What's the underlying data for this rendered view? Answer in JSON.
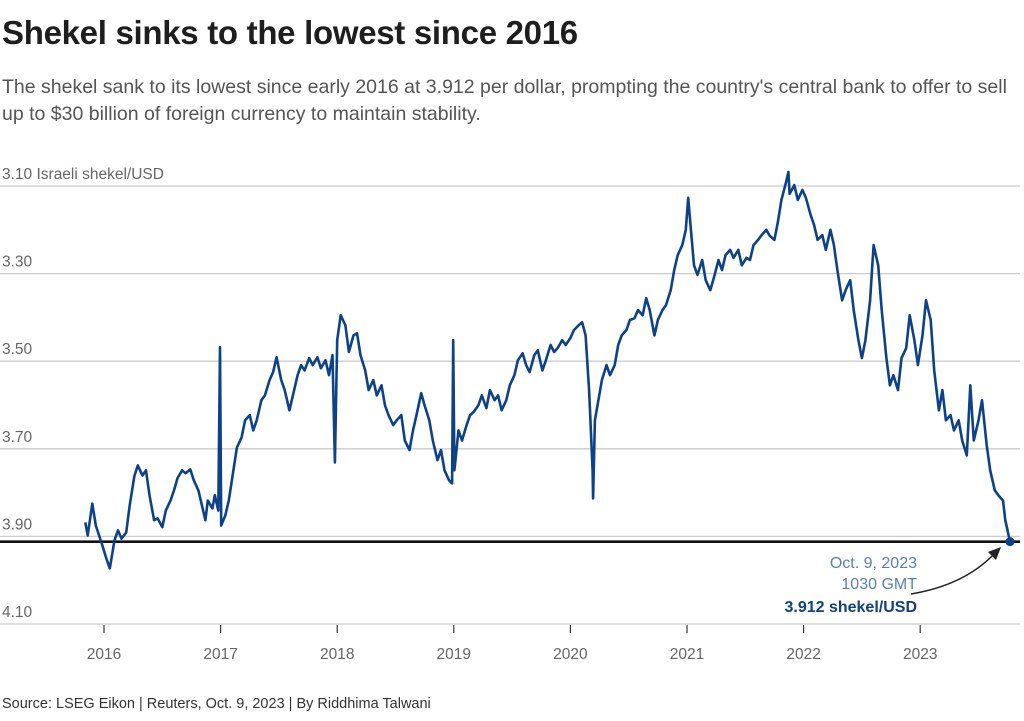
{
  "header": {
    "title": "Shekel sinks to the lowest since 2016",
    "subtitle": "The shekel sank to its lowest since early 2016 at 3.912 per dollar, prompting the country's central bank to offer to sell up to $30 billion of foreign currency to maintain stability."
  },
  "footer": {
    "source": "Source: LSEG Eikon | Reuters, Oct. 9, 2023 | By Riddhima Talwani"
  },
  "colors": {
    "line": "#0d4188",
    "gridline": "#cccccc",
    "reference_line": "#111111",
    "annotation_date": "#5b7fb3",
    "annotation_value": "#123f80"
  },
  "chart_data": {
    "type": "line",
    "title": "Shekel sinks to the lowest since 2016",
    "xlabel": "",
    "ylabel": "Israeli shekel/USD",
    "y_unit_label": "Israeli shekel/USD",
    "y_inverted": true,
    "ylim": [
      3.1,
      4.1
    ],
    "xlim": [
      2015.75,
      2023.85
    ],
    "y_ticks": [
      3.1,
      3.3,
      3.5,
      3.7,
      3.9,
      4.1
    ],
    "y_tick_labels": [
      "3.10",
      "3.30",
      "3.50",
      "3.70",
      "3.90",
      "4.10"
    ],
    "x_ticks": [
      2016,
      2017,
      2018,
      2019,
      2020,
      2021,
      2022,
      2023
    ],
    "x_tick_labels": [
      "2016",
      "2017",
      "2018",
      "2019",
      "2020",
      "2021",
      "2022",
      "2023"
    ],
    "grid": "horizontal",
    "reference_line": {
      "value": 3.912
    },
    "annotation": {
      "date_line1": "Oct. 9, 2023",
      "date_line2": "1030 GMT",
      "value_text": "3.912 shekel/USD",
      "x": 2023.77,
      "y": 3.912
    },
    "series": [
      {
        "name": "Israeli shekel/USD",
        "points": [
          [
            2015.84,
            3.868
          ],
          [
            2015.86,
            3.898
          ],
          [
            2015.9,
            3.825
          ],
          [
            2015.93,
            3.875
          ],
          [
            2015.98,
            3.916
          ],
          [
            2016.02,
            3.95
          ],
          [
            2016.05,
            3.973
          ],
          [
            2016.09,
            3.909
          ],
          [
            2016.12,
            3.886
          ],
          [
            2016.15,
            3.905
          ],
          [
            2016.19,
            3.891
          ],
          [
            2016.22,
            3.829
          ],
          [
            2016.26,
            3.763
          ],
          [
            2016.29,
            3.738
          ],
          [
            2016.33,
            3.761
          ],
          [
            2016.36,
            3.749
          ],
          [
            2016.39,
            3.806
          ],
          [
            2016.43,
            3.863
          ],
          [
            2016.46,
            3.859
          ],
          [
            2016.5,
            3.879
          ],
          [
            2016.53,
            3.841
          ],
          [
            2016.57,
            3.818
          ],
          [
            2016.6,
            3.795
          ],
          [
            2016.63,
            3.767
          ],
          [
            2016.67,
            3.749
          ],
          [
            2016.7,
            3.756
          ],
          [
            2016.74,
            3.747
          ],
          [
            2016.77,
            3.772
          ],
          [
            2016.81,
            3.795
          ],
          [
            2016.84,
            3.829
          ],
          [
            2016.87,
            3.863
          ],
          [
            2016.89,
            3.818
          ],
          [
            2016.93,
            3.836
          ],
          [
            2016.95,
            3.806
          ],
          [
            2016.98,
            3.841
          ],
          [
            2016.995,
            3.468
          ],
          [
            2017.005,
            3.875
          ],
          [
            2017.04,
            3.852
          ],
          [
            2017.07,
            3.818
          ],
          [
            2017.11,
            3.749
          ],
          [
            2017.14,
            3.697
          ],
          [
            2017.18,
            3.674
          ],
          [
            2017.21,
            3.635
          ],
          [
            2017.25,
            3.623
          ],
          [
            2017.28,
            3.658
          ],
          [
            2017.31,
            3.635
          ],
          [
            2017.35,
            3.589
          ],
          [
            2017.38,
            3.578
          ],
          [
            2017.42,
            3.543
          ],
          [
            2017.45,
            3.525
          ],
          [
            2017.48,
            3.491
          ],
          [
            2017.52,
            3.543
          ],
          [
            2017.55,
            3.566
          ],
          [
            2017.59,
            3.612
          ],
          [
            2017.62,
            3.578
          ],
          [
            2017.66,
            3.532
          ],
          [
            2017.69,
            3.509
          ],
          [
            2017.72,
            3.521
          ],
          [
            2017.76,
            3.493
          ],
          [
            2017.79,
            3.509
          ],
          [
            2017.83,
            3.491
          ],
          [
            2017.86,
            3.516
          ],
          [
            2017.9,
            3.498
          ],
          [
            2017.93,
            3.532
          ],
          [
            2017.96,
            3.486
          ],
          [
            2017.98,
            3.731
          ],
          [
            2018.0,
            3.452
          ],
          [
            2018.03,
            3.395
          ],
          [
            2018.07,
            3.418
          ],
          [
            2018.1,
            3.479
          ],
          [
            2018.14,
            3.441
          ],
          [
            2018.17,
            3.436
          ],
          [
            2018.2,
            3.486
          ],
          [
            2018.24,
            3.521
          ],
          [
            2018.27,
            3.566
          ],
          [
            2018.31,
            3.543
          ],
          [
            2018.34,
            3.578
          ],
          [
            2018.38,
            3.555
          ],
          [
            2018.41,
            3.601
          ],
          [
            2018.44,
            3.623
          ],
          [
            2018.48,
            3.646
          ],
          [
            2018.51,
            3.635
          ],
          [
            2018.55,
            3.623
          ],
          [
            2018.58,
            3.681
          ],
          [
            2018.62,
            3.703
          ],
          [
            2018.65,
            3.658
          ],
          [
            2018.68,
            3.623
          ],
          [
            2018.72,
            3.573
          ],
          [
            2018.75,
            3.601
          ],
          [
            2018.79,
            3.635
          ],
          [
            2018.82,
            3.681
          ],
          [
            2018.86,
            3.726
          ],
          [
            2018.89,
            3.703
          ],
          [
            2018.92,
            3.749
          ],
          [
            2018.96,
            3.772
          ],
          [
            2018.985,
            3.779
          ],
          [
            2018.995,
            3.452
          ],
          [
            2019.005,
            3.749
          ],
          [
            2019.04,
            3.658
          ],
          [
            2019.07,
            3.681
          ],
          [
            2019.11,
            3.646
          ],
          [
            2019.14,
            3.623
          ],
          [
            2019.17,
            3.616
          ],
          [
            2019.21,
            3.601
          ],
          [
            2019.24,
            3.578
          ],
          [
            2019.28,
            3.607
          ],
          [
            2019.31,
            3.566
          ],
          [
            2019.35,
            3.589
          ],
          [
            2019.38,
            3.578
          ],
          [
            2019.41,
            3.612
          ],
          [
            2019.45,
            3.589
          ],
          [
            2019.48,
            3.555
          ],
          [
            2019.52,
            3.532
          ],
          [
            2019.55,
            3.498
          ],
          [
            2019.59,
            3.482
          ],
          [
            2019.62,
            3.509
          ],
          [
            2019.65,
            3.525
          ],
          [
            2019.69,
            3.486
          ],
          [
            2019.72,
            3.475
          ],
          [
            2019.76,
            3.521
          ],
          [
            2019.79,
            3.498
          ],
          [
            2019.83,
            3.463
          ],
          [
            2019.86,
            3.479
          ],
          [
            2019.89,
            3.47
          ],
          [
            2019.93,
            3.452
          ],
          [
            2019.96,
            3.463
          ],
          [
            2020.0,
            3.447
          ],
          [
            2020.03,
            3.429
          ],
          [
            2020.07,
            3.418
          ],
          [
            2020.1,
            3.411
          ],
          [
            2020.13,
            3.441
          ],
          [
            2020.16,
            3.566
          ],
          [
            2020.19,
            3.749
          ],
          [
            2020.195,
            3.813
          ],
          [
            2020.21,
            3.635
          ],
          [
            2020.24,
            3.589
          ],
          [
            2020.27,
            3.543
          ],
          [
            2020.31,
            3.509
          ],
          [
            2020.34,
            3.532
          ],
          [
            2020.38,
            3.509
          ],
          [
            2020.41,
            3.463
          ],
          [
            2020.44,
            3.441
          ],
          [
            2020.48,
            3.429
          ],
          [
            2020.51,
            3.406
          ],
          [
            2020.55,
            3.402
          ],
          [
            2020.58,
            3.383
          ],
          [
            2020.62,
            3.395
          ],
          [
            2020.65,
            3.356
          ],
          [
            2020.68,
            3.383
          ],
          [
            2020.72,
            3.441
          ],
          [
            2020.75,
            3.406
          ],
          [
            2020.79,
            3.383
          ],
          [
            2020.82,
            3.372
          ],
          [
            2020.86,
            3.338
          ],
          [
            2020.89,
            3.292
          ],
          [
            2020.92,
            3.258
          ],
          [
            2020.96,
            3.235
          ],
          [
            2020.99,
            3.2
          ],
          [
            2021.01,
            3.127
          ],
          [
            2021.03,
            3.189
          ],
          [
            2021.06,
            3.281
          ],
          [
            2021.09,
            3.303
          ],
          [
            2021.13,
            3.269
          ],
          [
            2021.16,
            3.315
          ],
          [
            2021.2,
            3.338
          ],
          [
            2021.23,
            3.31
          ],
          [
            2021.27,
            3.269
          ],
          [
            2021.3,
            3.292
          ],
          [
            2021.33,
            3.258
          ],
          [
            2021.37,
            3.246
          ],
          [
            2021.4,
            3.264
          ],
          [
            2021.44,
            3.246
          ],
          [
            2021.47,
            3.281
          ],
          [
            2021.51,
            3.264
          ],
          [
            2021.54,
            3.269
          ],
          [
            2021.57,
            3.235
          ],
          [
            2021.61,
            3.223
          ],
          [
            2021.64,
            3.212
          ],
          [
            2021.68,
            3.2
          ],
          [
            2021.71,
            3.214
          ],
          [
            2021.75,
            3.223
          ],
          [
            2021.78,
            3.182
          ],
          [
            2021.81,
            3.132
          ],
          [
            2021.85,
            3.091
          ],
          [
            2021.87,
            3.068
          ],
          [
            2021.88,
            3.118
          ],
          [
            2021.92,
            3.098
          ],
          [
            2021.95,
            3.132
          ],
          [
            2021.99,
            3.109
          ],
          [
            2022.02,
            3.127
          ],
          [
            2022.06,
            3.166
          ],
          [
            2022.09,
            3.189
          ],
          [
            2022.12,
            3.223
          ],
          [
            2022.16,
            3.212
          ],
          [
            2022.19,
            3.246
          ],
          [
            2022.23,
            3.2
          ],
          [
            2022.26,
            3.235
          ],
          [
            2022.29,
            3.292
          ],
          [
            2022.33,
            3.361
          ],
          [
            2022.36,
            3.338
          ],
          [
            2022.4,
            3.315
          ],
          [
            2022.43,
            3.383
          ],
          [
            2022.47,
            3.452
          ],
          [
            2022.5,
            3.493
          ],
          [
            2022.53,
            3.452
          ],
          [
            2022.57,
            3.361
          ],
          [
            2022.6,
            3.235
          ],
          [
            2022.64,
            3.281
          ],
          [
            2022.67,
            3.383
          ],
          [
            2022.71,
            3.493
          ],
          [
            2022.74,
            3.555
          ],
          [
            2022.77,
            3.532
          ],
          [
            2022.81,
            3.566
          ],
          [
            2022.84,
            3.493
          ],
          [
            2022.88,
            3.47
          ],
          [
            2022.91,
            3.395
          ],
          [
            2022.95,
            3.452
          ],
          [
            2022.98,
            3.509
          ],
          [
            2023.02,
            3.441
          ],
          [
            2023.05,
            3.361
          ],
          [
            2023.09,
            3.406
          ],
          [
            2023.12,
            3.521
          ],
          [
            2023.16,
            3.612
          ],
          [
            2023.19,
            3.566
          ],
          [
            2023.22,
            3.635
          ],
          [
            2023.26,
            3.623
          ],
          [
            2023.29,
            3.658
          ],
          [
            2023.33,
            3.635
          ],
          [
            2023.36,
            3.681
          ],
          [
            2023.4,
            3.715
          ],
          [
            2023.43,
            3.555
          ],
          [
            2023.46,
            3.681
          ],
          [
            2023.5,
            3.635
          ],
          [
            2023.53,
            3.589
          ],
          [
            2023.57,
            3.692
          ],
          [
            2023.6,
            3.749
          ],
          [
            2023.64,
            3.795
          ],
          [
            2023.67,
            3.806
          ],
          [
            2023.71,
            3.818
          ],
          [
            2023.73,
            3.863
          ],
          [
            2023.77,
            3.912
          ]
        ]
      }
    ]
  }
}
